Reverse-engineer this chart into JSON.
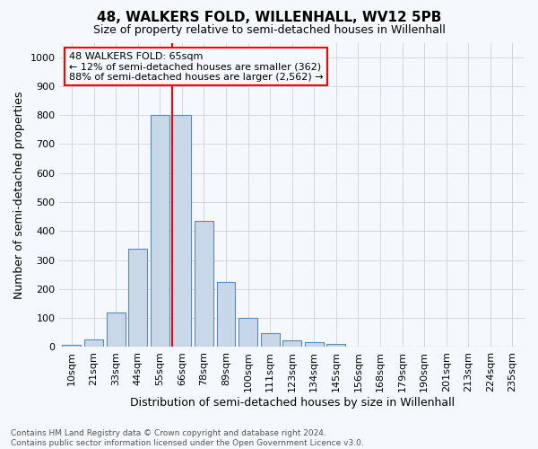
{
  "title1": "48, WALKERS FOLD, WILLENHALL, WV12 5PB",
  "title2": "Size of property relative to semi-detached houses in Willenhall",
  "xlabel": "Distribution of semi-detached houses by size in Willenhall",
  "ylabel": "Number of semi-detached properties",
  "footer1": "Contains HM Land Registry data © Crown copyright and database right 2024.",
  "footer2": "Contains public sector information licensed under the Open Government Licence v3.0.",
  "annotation_title": "48 WALKERS FOLD: 65sqm",
  "annotation_line1": "← 12% of semi-detached houses are smaller (362)",
  "annotation_line2": "88% of semi-detached houses are larger (2,562) →",
  "bar_labels": [
    "10sqm",
    "21sqm",
    "33sqm",
    "44sqm",
    "55sqm",
    "66sqm",
    "78sqm",
    "89sqm",
    "100sqm",
    "111sqm",
    "123sqm",
    "134sqm",
    "145sqm",
    "156sqm",
    "168sqm",
    "179sqm",
    "190sqm",
    "201sqm",
    "213sqm",
    "224sqm",
    "235sqm"
  ],
  "bar_values": [
    8,
    25,
    120,
    340,
    800,
    800,
    435,
    225,
    100,
    48,
    22,
    18,
    10,
    0,
    0,
    0,
    0,
    0,
    0,
    0,
    0
  ],
  "bar_color": "#c8d8e8",
  "bar_edge_color": "#5a8ab5",
  "marker_bin_index": 5,
  "marker_color": "red",
  "ylim": [
    0,
    1050
  ],
  "yticks": [
    0,
    100,
    200,
    300,
    400,
    500,
    600,
    700,
    800,
    900,
    1000
  ],
  "grid_color": "#d0d8e0",
  "bg_color": "#f5f8fc",
  "title1_fontsize": 11,
  "title2_fontsize": 9,
  "ylabel_fontsize": 9,
  "xlabel_fontsize": 9,
  "tick_fontsize": 8,
  "ytick_fontsize": 8,
  "footer_fontsize": 6.5,
  "annotation_fontsize": 8
}
